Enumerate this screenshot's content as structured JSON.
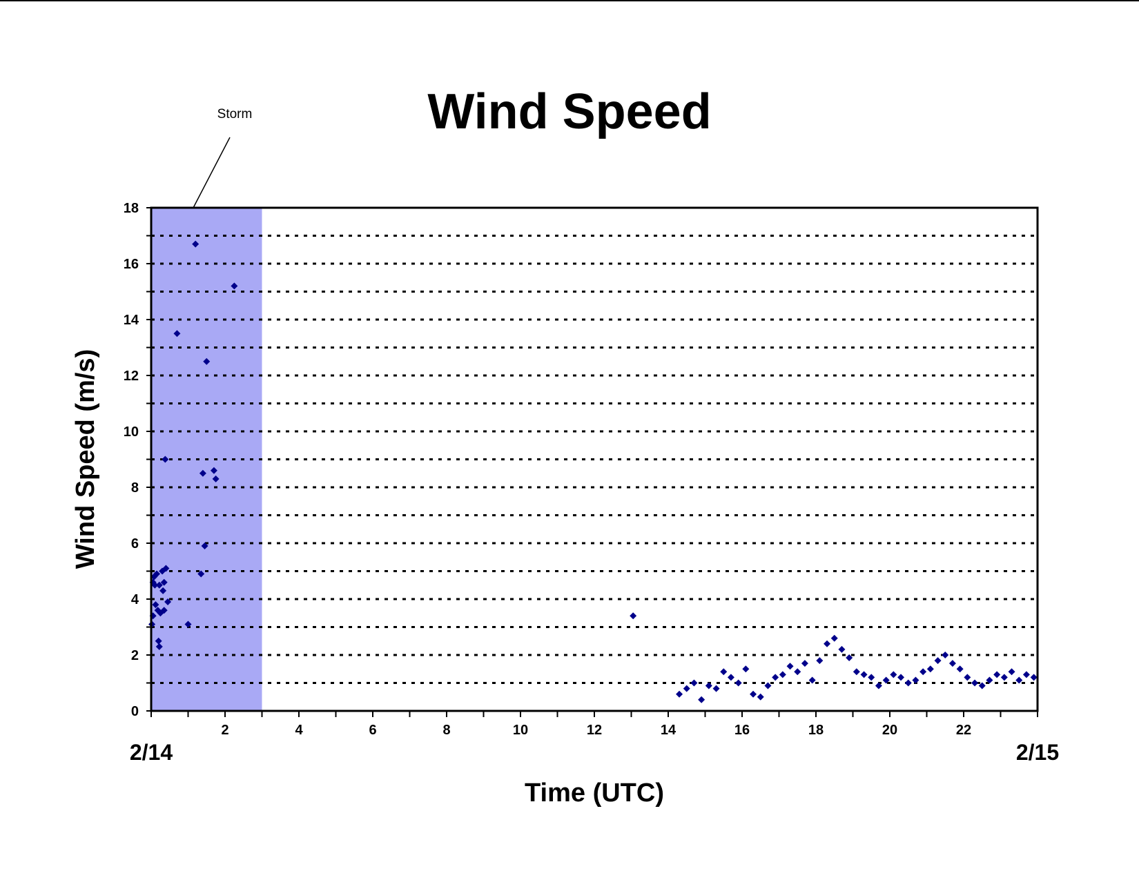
{
  "chart_data": {
    "type": "scatter",
    "title": "Wind Speed",
    "xlabel": "Time (UTC)",
    "ylabel": "Wind Speed (m/s)",
    "xlim": [
      0,
      24
    ],
    "ylim": [
      0,
      18
    ],
    "x_ticks": [
      2,
      4,
      6,
      8,
      10,
      12,
      14,
      16,
      18,
      20,
      22
    ],
    "x_tick_labels": [
      "2",
      "4",
      "6",
      "8",
      "10",
      "12",
      "14",
      "16",
      "18",
      "20",
      "22"
    ],
    "y_ticks": [
      0,
      2,
      4,
      6,
      8,
      10,
      12,
      14,
      16,
      18
    ],
    "y_tick_labels": [
      "0",
      "2",
      "4",
      "6",
      "8",
      "10",
      "12",
      "14",
      "16",
      "18"
    ],
    "start_date_label": "2/14",
    "end_date_label": "2/15",
    "grid": "horizontal dotted lines at every 1 m/s",
    "marker_color": "#00008B",
    "marker_shape": "diamond",
    "shaded_region": {
      "label": "Storm",
      "x_start": 0,
      "x_end": 3,
      "color": "#A9A9F5"
    },
    "series": [
      {
        "points": [
          [
            0.02,
            3.1
          ],
          [
            0.05,
            3.4
          ],
          [
            0.05,
            4.6
          ],
          [
            0.08,
            4.8
          ],
          [
            0.1,
            4.5
          ],
          [
            0.12,
            3.8
          ],
          [
            0.15,
            4.9
          ],
          [
            0.18,
            3.6
          ],
          [
            0.2,
            2.5
          ],
          [
            0.22,
            4.5
          ],
          [
            0.25,
            3.5
          ],
          [
            0.22,
            2.3
          ],
          [
            0.3,
            5.0
          ],
          [
            0.32,
            4.3
          ],
          [
            0.35,
            3.6
          ],
          [
            0.35,
            4.6
          ],
          [
            0.4,
            5.1
          ],
          [
            0.38,
            9.0
          ],
          [
            0.45,
            3.9
          ],
          [
            0.7,
            13.5
          ],
          [
            1.0,
            3.1
          ],
          [
            1.2,
            16.7
          ],
          [
            1.35,
            4.9
          ],
          [
            1.4,
            8.5
          ],
          [
            1.45,
            5.9
          ],
          [
            1.5,
            12.5
          ],
          [
            1.7,
            8.6
          ],
          [
            1.75,
            8.3
          ],
          [
            2.25,
            15.2
          ],
          [
            13.05,
            3.4
          ],
          [
            14.3,
            0.6
          ],
          [
            14.5,
            0.8
          ],
          [
            14.7,
            1.0
          ],
          [
            14.9,
            0.4
          ],
          [
            15.1,
            0.9
          ],
          [
            15.3,
            0.8
          ],
          [
            15.5,
            1.4
          ],
          [
            15.7,
            1.2
          ],
          [
            15.9,
            1.0
          ],
          [
            16.1,
            1.5
          ],
          [
            16.3,
            0.6
          ],
          [
            16.5,
            0.5
          ],
          [
            16.7,
            0.9
          ],
          [
            16.9,
            1.2
          ],
          [
            17.1,
            1.3
          ],
          [
            17.3,
            1.6
          ],
          [
            17.5,
            1.4
          ],
          [
            17.7,
            1.7
          ],
          [
            17.9,
            1.1
          ],
          [
            18.1,
            1.8
          ],
          [
            18.3,
            2.4
          ],
          [
            18.5,
            2.6
          ],
          [
            18.7,
            2.2
          ],
          [
            18.9,
            1.9
          ],
          [
            19.1,
            1.4
          ],
          [
            19.3,
            1.3
          ],
          [
            19.5,
            1.2
          ],
          [
            19.7,
            0.9
          ],
          [
            19.9,
            1.1
          ],
          [
            20.1,
            1.3
          ],
          [
            20.3,
            1.2
          ],
          [
            20.5,
            1.0
          ],
          [
            20.7,
            1.1
          ],
          [
            20.9,
            1.4
          ],
          [
            21.1,
            1.5
          ],
          [
            21.3,
            1.8
          ],
          [
            21.5,
            2.0
          ],
          [
            21.7,
            1.7
          ],
          [
            21.9,
            1.5
          ],
          [
            22.1,
            1.2
          ],
          [
            22.3,
            1.0
          ],
          [
            22.5,
            0.9
          ],
          [
            22.7,
            1.1
          ],
          [
            22.9,
            1.3
          ],
          [
            23.1,
            1.2
          ],
          [
            23.3,
            1.4
          ],
          [
            23.5,
            1.1
          ],
          [
            23.7,
            1.3
          ],
          [
            23.9,
            1.2
          ]
        ]
      }
    ]
  }
}
